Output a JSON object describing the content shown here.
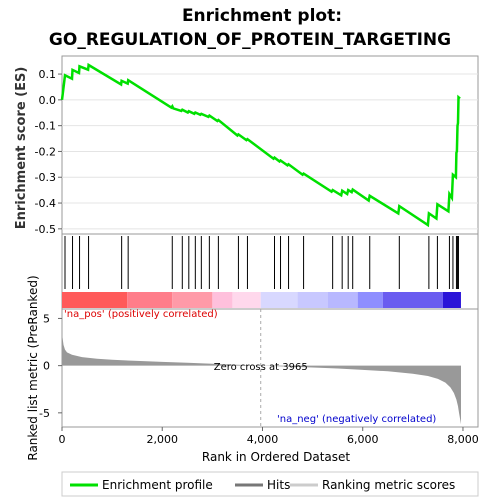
{
  "chart_data": {
    "type": "line",
    "title": "Enrichment plot:",
    "subtitle": "GO_REGULATION_OF_PROTEIN_TARGETING",
    "colors": {
      "es_line": "#00e000",
      "hits": "#000000",
      "metric_fill": "#999999",
      "pos_label": "#dd0000",
      "neg_label": "#0000cc",
      "zero_line": "#bbbbbb"
    },
    "top_panel": {
      "ylabel": "Enrichment score (ES)",
      "ylim": [
        -0.52,
        0.17
      ],
      "yticks": [
        "0.1",
        "0.0",
        "-0.1",
        "-0.2",
        "-0.3",
        "-0.4",
        "-0.5"
      ],
      "ytick_values": [
        0.1,
        0.0,
        -0.1,
        -0.2,
        -0.3,
        -0.4,
        -0.5
      ],
      "series": [
        {
          "name": "Enrichment profile",
          "x": [
            0,
            60,
            200,
            210,
            340,
            350,
            520,
            530,
            1180,
            1190,
            1310,
            1320,
            2180,
            2200,
            2220,
            2380,
            2400,
            2510,
            2530,
            2640,
            2660,
            2760,
            2780,
            2920,
            2940,
            3100,
            3120,
            3500,
            3520,
            3680,
            3700,
            4220,
            4240,
            4340,
            4360,
            4500,
            4520,
            4800,
            4820,
            5380,
            5400,
            5570,
            5590,
            5690,
            5710,
            5780,
            5800,
            6120,
            6140,
            6710,
            6730,
            7300,
            7320,
            7470,
            7490,
            7710,
            7730,
            7780,
            7800,
            7860,
            7870,
            7880,
            7890,
            7900,
            7910,
            7940
          ],
          "y": [
            0.0,
            0.095,
            0.082,
            0.116,
            0.104,
            0.13,
            0.117,
            0.135,
            0.06,
            0.074,
            0.063,
            0.076,
            -0.03,
            -0.025,
            -0.033,
            -0.043,
            -0.038,
            -0.049,
            -0.044,
            -0.054,
            -0.049,
            -0.058,
            -0.054,
            -0.066,
            -0.061,
            -0.082,
            -0.078,
            -0.138,
            -0.134,
            -0.156,
            -0.152,
            -0.228,
            -0.224,
            -0.239,
            -0.235,
            -0.254,
            -0.25,
            -0.29,
            -0.286,
            -0.356,
            -0.35,
            -0.37,
            -0.352,
            -0.365,
            -0.35,
            -0.358,
            -0.348,
            -0.39,
            -0.372,
            -0.44,
            -0.412,
            -0.485,
            -0.44,
            -0.46,
            -0.405,
            -0.432,
            -0.365,
            -0.38,
            -0.29,
            -0.3,
            -0.205,
            -0.2,
            -0.1,
            -0.09,
            0.01,
            0.005
          ]
        }
      ]
    },
    "hits_panel": {
      "hits": [
        60,
        210,
        350,
        530,
        1190,
        1320,
        2200,
        2400,
        2530,
        2660,
        2780,
        2940,
        3120,
        3520,
        3700,
        4240,
        4360,
        4520,
        4820,
        5400,
        5590,
        5710,
        5800,
        6140,
        6730,
        7320,
        7490,
        7730,
        7800,
        7870,
        7890,
        7910
      ]
    },
    "rank_panel": {
      "ylabel": "Ranked list metric (PreRanked)",
      "ylim": [
        -6.5,
        6.0
      ],
      "yticks": [
        "5",
        "0",
        "-5"
      ],
      "ytick_values": [
        5,
        0,
        -5
      ],
      "xlabel": "Rank in Ordered Dataset",
      "xlim": [
        0,
        8300
      ],
      "xticks": [
        "0",
        "2,000",
        "4,000",
        "6,000",
        "8,000"
      ],
      "xtick_values": [
        0,
        2000,
        4000,
        6000,
        8000
      ],
      "zero_cross_label": "Zero cross at 3965",
      "zero_cross": 3965,
      "pos_label": "'na_pos' (positively correlated)",
      "neg_label": "'na_neg' (negatively correlated)",
      "metric_curve": {
        "x": [
          0,
          10,
          30,
          60,
          100,
          200,
          400,
          700,
          1000,
          1500,
          2000,
          2500,
          3000,
          3500,
          3965,
          4500,
          5000,
          5500,
          6000,
          6500,
          7000,
          7300,
          7500,
          7650,
          7750,
          7820,
          7870,
          7900,
          7920,
          7940,
          7960
        ],
        "y": [
          4.5,
          3.0,
          2.2,
          1.7,
          1.4,
          1.15,
          0.9,
          0.72,
          0.62,
          0.5,
          0.4,
          0.3,
          0.2,
          0.1,
          0.0,
          -0.1,
          -0.2,
          -0.3,
          -0.45,
          -0.6,
          -0.85,
          -1.1,
          -1.4,
          -1.8,
          -2.3,
          -2.9,
          -3.6,
          -4.3,
          -5.0,
          -5.6,
          -6.2
        ]
      }
    },
    "legend": {
      "position": "bottom",
      "entries": [
        "Enrichment profile",
        "Hits",
        "Ranking metric scores"
      ]
    }
  }
}
